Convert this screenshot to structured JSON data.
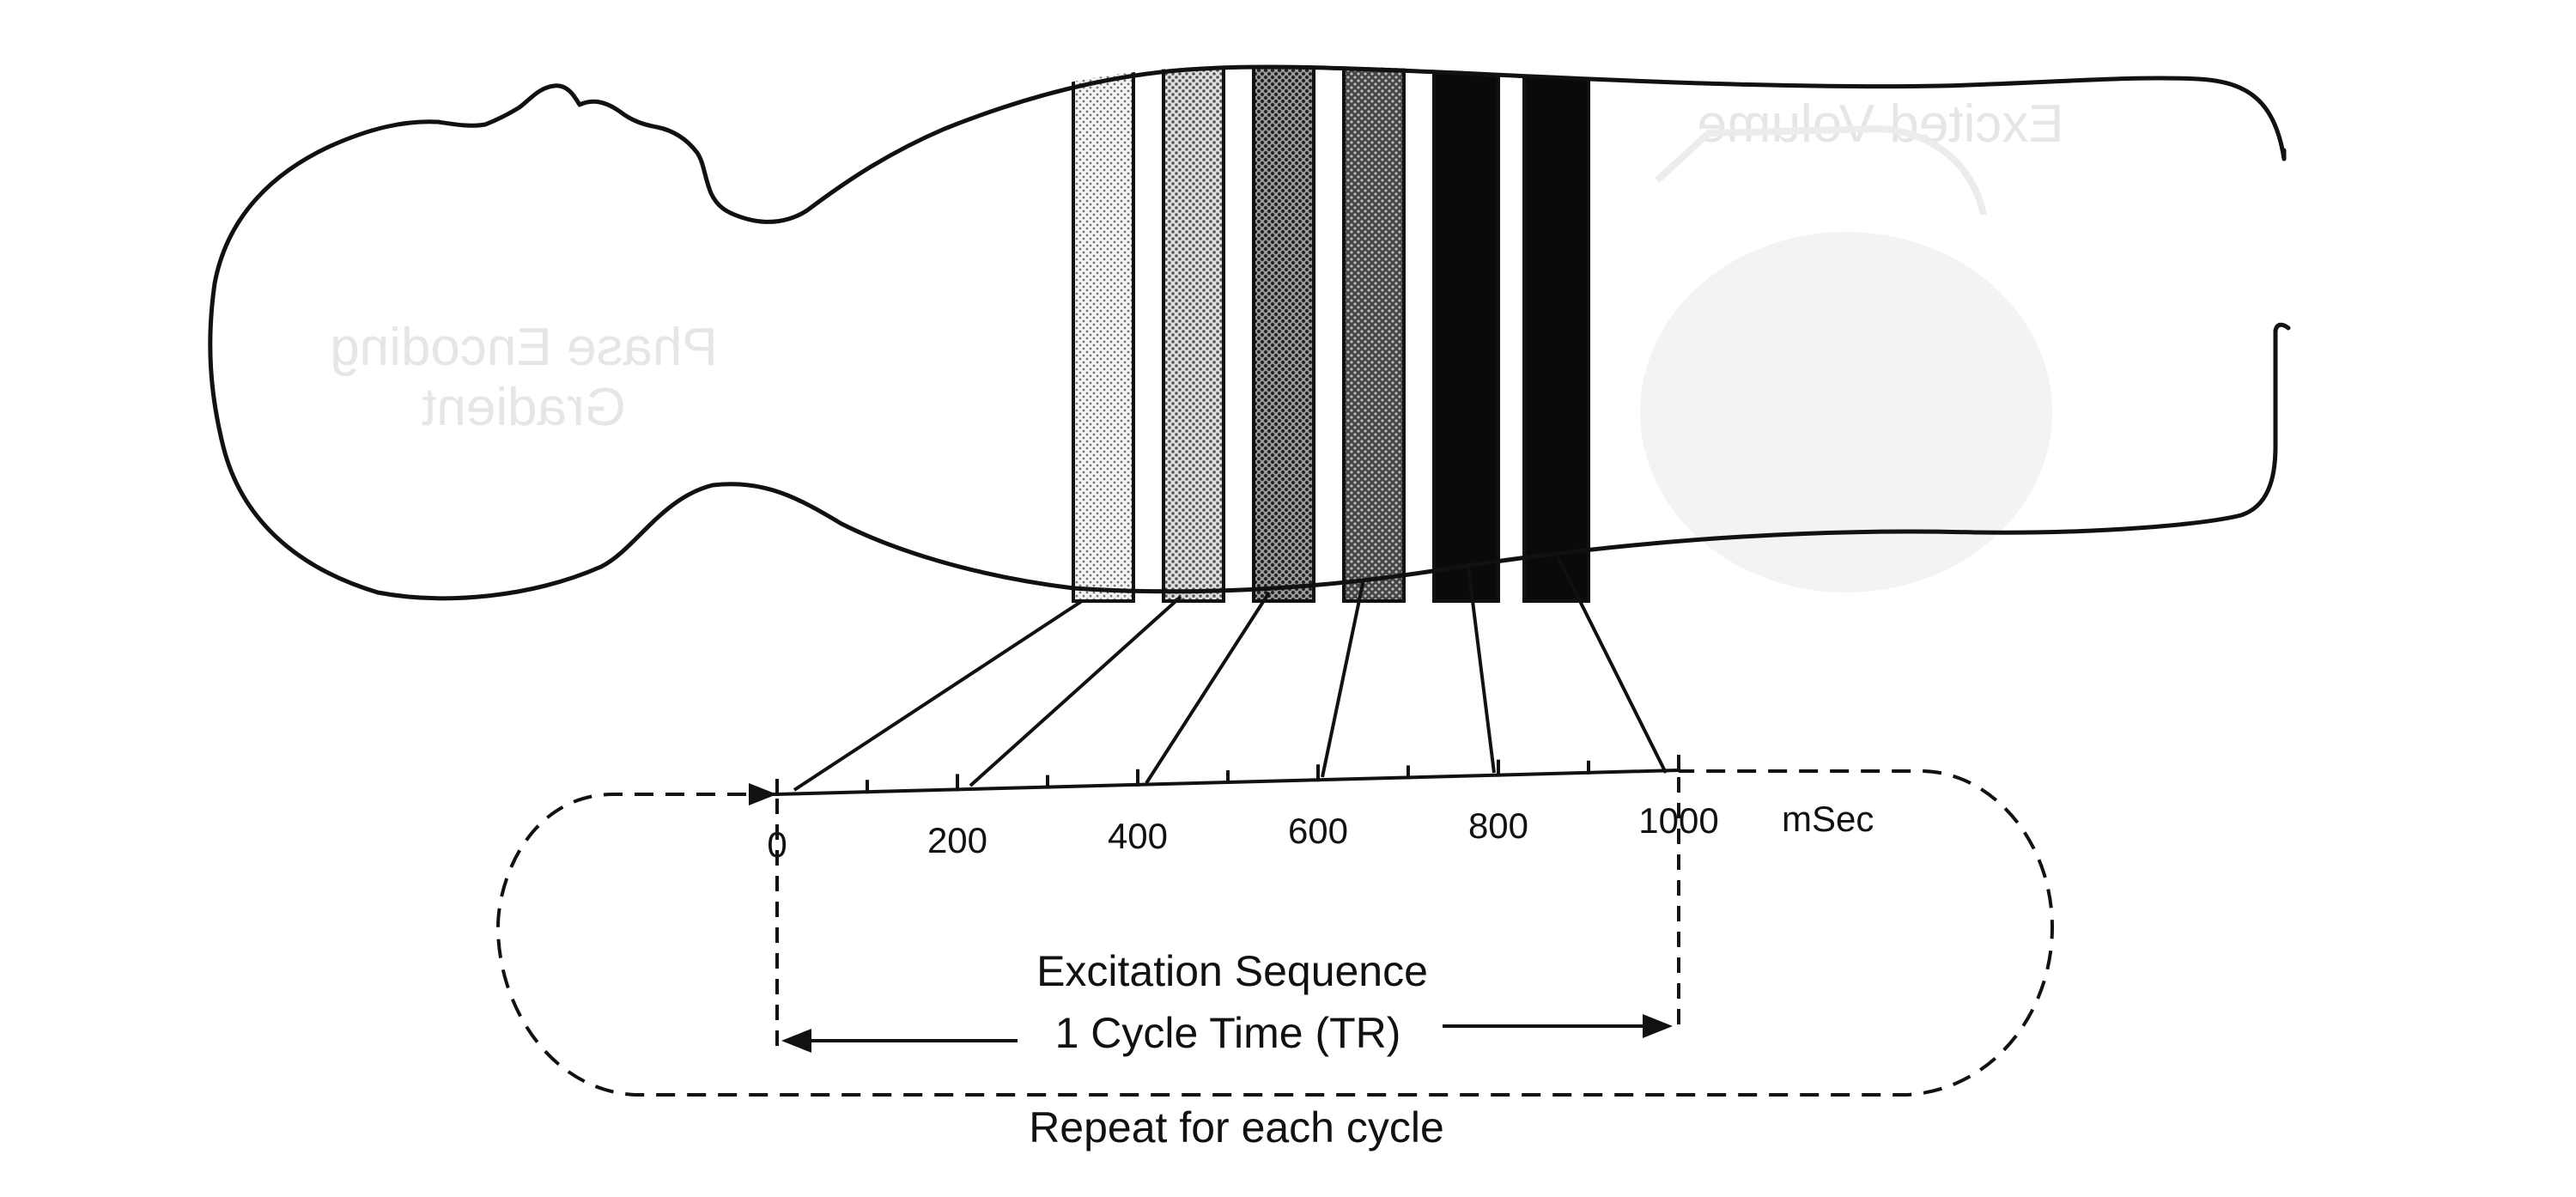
{
  "timeline": {
    "ticks": [
      "0",
      "200",
      "400",
      "600",
      "800",
      "1000"
    ],
    "unit": "mSec"
  },
  "labels": {
    "excitation_sequence": "Excitation Sequence",
    "cycle_time": "1 Cycle Time (TR)",
    "repeat": "Repeat for each cycle"
  },
  "ghost_text": {
    "phase_encoding": "Phase Encoding",
    "gradient": "Gradient",
    "excited_volume": "Excited Volume"
  },
  "slices": [
    {
      "shade": "#d6d6d6"
    },
    {
      "shade": "#c2c2c2"
    },
    {
      "shade": "#8a8a8a"
    },
    {
      "shade": "#555555"
    },
    {
      "shade": "#0a0a0a"
    },
    {
      "shade": "#0a0a0a"
    }
  ],
  "colors": {
    "ink": "#111111",
    "ghost": "#e6e6e6"
  }
}
